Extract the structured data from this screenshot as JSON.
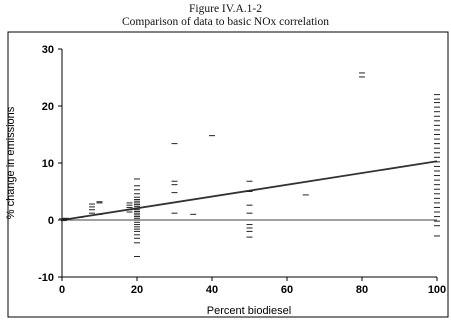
{
  "figure": {
    "title": "Figure IV.A.1-2",
    "subtitle": "Comparison of data to basic NOx correlation"
  },
  "chart_data": {
    "type": "scatter",
    "title": "Figure IV.A.1-2",
    "subtitle": "Comparison of data to basic NOx correlation",
    "xlabel": "Percent biodiesel",
    "ylabel": "% change in emissions",
    "xlim": [
      0,
      100
    ],
    "ylim": [
      -10,
      30
    ],
    "xticks": [
      0,
      20,
      40,
      60,
      80,
      100
    ],
    "yticks": [
      -10,
      0,
      10,
      20,
      30
    ],
    "grid": false,
    "marker": "dash",
    "colors": {
      "axes": "#000000",
      "marker": "#222222",
      "trend": "#333333"
    },
    "series": [
      {
        "type": "scatter",
        "points": [
          [
            0,
            0.0
          ],
          [
            0,
            0.2
          ],
          [
            0.5,
            -0.1
          ],
          [
            1,
            0.3
          ],
          [
            1,
            0.1
          ],
          [
            5,
            0.5
          ],
          [
            8,
            1.2
          ],
          [
            8,
            1.8
          ],
          [
            8,
            2.3
          ],
          [
            8,
            2.8
          ],
          [
            10,
            1.0
          ],
          [
            10,
            3.0
          ],
          [
            10,
            3.2
          ],
          [
            18,
            1.4
          ],
          [
            18,
            1.8
          ],
          [
            18,
            2.2
          ],
          [
            18,
            2.6
          ],
          [
            18,
            3.0
          ],
          [
            20,
            7.2
          ],
          [
            20,
            6.0
          ],
          [
            20,
            5.3
          ],
          [
            20,
            4.6
          ],
          [
            20,
            4.0
          ],
          [
            20,
            3.6
          ],
          [
            20,
            3.3
          ],
          [
            20,
            3.0
          ],
          [
            20,
            2.7
          ],
          [
            20,
            2.4
          ],
          [
            20,
            2.1
          ],
          [
            20,
            1.8
          ],
          [
            20,
            1.5
          ],
          [
            20,
            1.2
          ],
          [
            20,
            0.9
          ],
          [
            20,
            0.6
          ],
          [
            20,
            0.3
          ],
          [
            20,
            0.0
          ],
          [
            20,
            -0.4
          ],
          [
            20,
            -0.8
          ],
          [
            20,
            -1.2
          ],
          [
            20,
            -1.6
          ],
          [
            20,
            -2.0
          ],
          [
            20,
            -2.6
          ],
          [
            20,
            -3.2
          ],
          [
            20,
            -4.0
          ],
          [
            20,
            -6.4
          ],
          [
            30,
            13.4
          ],
          [
            30,
            6.8
          ],
          [
            30,
            6.2
          ],
          [
            30,
            4.8
          ],
          [
            30,
            1.2
          ],
          [
            35,
            1.0
          ],
          [
            40,
            14.8
          ],
          [
            50,
            6.8
          ],
          [
            50,
            5.0
          ],
          [
            50,
            2.6
          ],
          [
            50,
            1.2
          ],
          [
            50,
            -0.8
          ],
          [
            50,
            -1.4
          ],
          [
            50,
            -2.0
          ],
          [
            50,
            -3.0
          ],
          [
            65,
            4.4
          ],
          [
            80,
            25.8
          ],
          [
            80,
            25.1
          ],
          [
            100,
            22.0
          ],
          [
            100,
            21.2
          ],
          [
            100,
            20.6
          ],
          [
            100,
            19.8
          ],
          [
            100,
            19.0
          ],
          [
            100,
            18.2
          ],
          [
            100,
            17.4
          ],
          [
            100,
            16.6
          ],
          [
            100,
            15.8
          ],
          [
            100,
            15.0
          ],
          [
            100,
            14.2
          ],
          [
            100,
            13.4
          ],
          [
            100,
            12.6
          ],
          [
            100,
            11.8
          ],
          [
            100,
            11.0
          ],
          [
            100,
            10.2
          ],
          [
            100,
            9.4
          ],
          [
            100,
            8.6
          ],
          [
            100,
            7.8
          ],
          [
            100,
            7.0
          ],
          [
            100,
            6.2
          ],
          [
            100,
            5.4
          ],
          [
            100,
            4.6
          ],
          [
            100,
            3.8
          ],
          [
            100,
            3.0
          ],
          [
            100,
            2.2
          ],
          [
            100,
            1.4
          ],
          [
            100,
            0.6
          ],
          [
            100,
            -0.2
          ],
          [
            100,
            -1.0
          ],
          [
            100,
            -2.8
          ]
        ]
      },
      {
        "type": "line",
        "points": [
          [
            0,
            0.0
          ],
          [
            100,
            10.3
          ]
        ]
      }
    ]
  }
}
